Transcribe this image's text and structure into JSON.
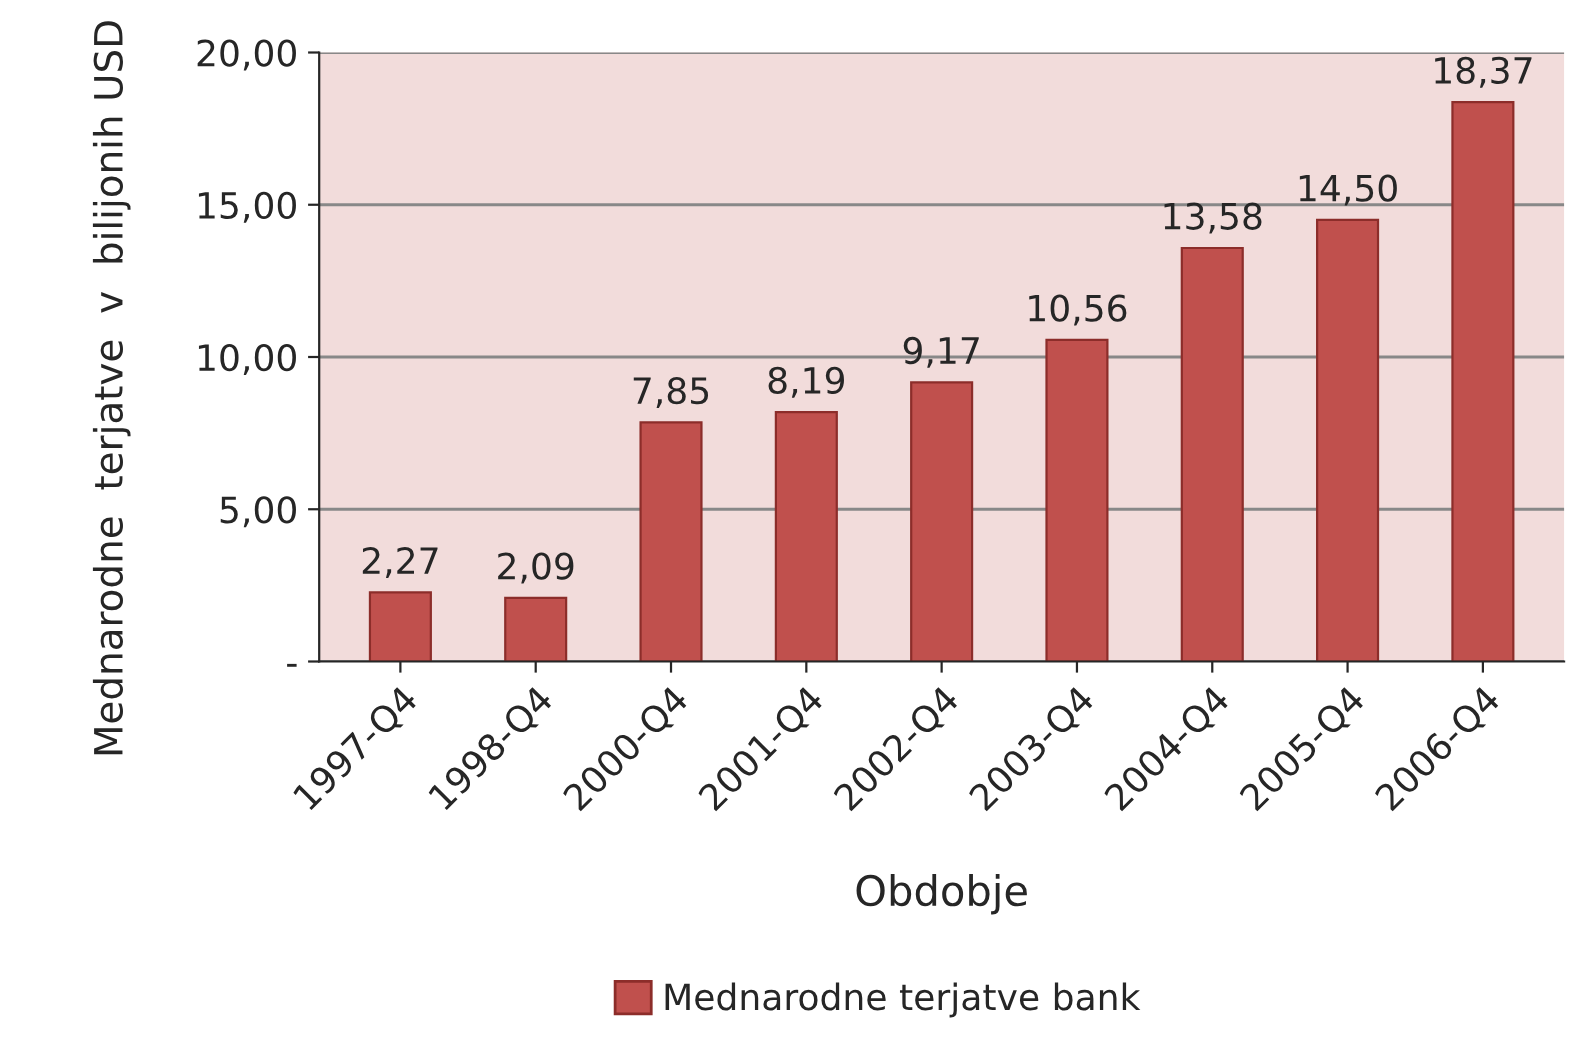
{
  "chart_data": {
    "type": "bar",
    "categories": [
      "1997-Q4",
      "1998-Q4",
      "2000-Q4",
      "2001-Q4",
      "2002-Q4",
      "2003-Q4",
      "2004-Q4",
      "2005-Q4",
      "2006-Q4"
    ],
    "series": [
      {
        "name": "Mednarodne terjatve bank",
        "color": "#c0504d",
        "values": [
          2.27,
          2.09,
          7.85,
          8.19,
          9.17,
          10.56,
          13.58,
          14.5,
          18.37
        ],
        "value_labels": [
          "2,27",
          "2,09",
          "7,85",
          "8,19",
          "9,17",
          "10,56",
          "13,58",
          "14,50",
          "18,37"
        ]
      }
    ],
    "xlabel": "Obdobje",
    "ylabel": "Mednarodne  terjatve  v  bilijonih USD",
    "ylim": [
      0,
      20
    ],
    "yticks": [
      {
        "value": 0,
        "label": "-"
      },
      {
        "value": 5,
        "label": "5,00"
      },
      {
        "value": 10,
        "label": "10,00"
      },
      {
        "value": 15,
        "label": "15,00"
      },
      {
        "value": 20,
        "label": "20,00"
      }
    ],
    "grid": "y",
    "legend": "bottom"
  }
}
